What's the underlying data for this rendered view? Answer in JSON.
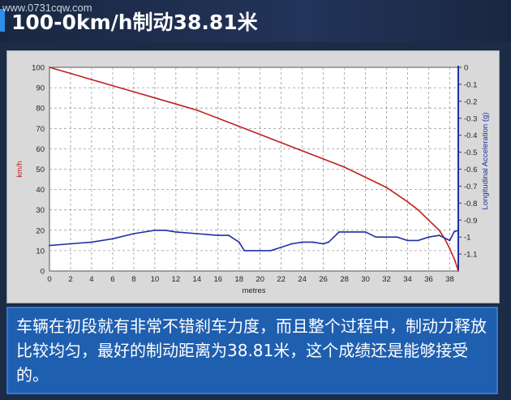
{
  "header": {
    "title": "100-0km/h制动38.81米",
    "watermark": "www.0731cqw.com"
  },
  "caption": {
    "text": "车辆在初段就有非常不错刹车力度，而且整个过程中，制动力释放比较均匀，最好的制动距离为38.81米，这个成绩还是能够接受的。"
  },
  "colors": {
    "speed_line": "#c0201e",
    "accel_line": "#1f2fa8",
    "plot_bg": "#ffffff",
    "grid": "#9a9a9a",
    "caption_bg": "#1f5fb0"
  },
  "chart_data": {
    "type": "line",
    "xlabel": "metres",
    "ylabel_left": "km/h",
    "ylabel_right": "Longitudinal Acceleration (g)",
    "xlim": [
      0,
      38.81
    ],
    "ylim_left": [
      0,
      100
    ],
    "ylim_right": [
      -1.2,
      0
    ],
    "xticks": [
      "0",
      "2",
      "4",
      "6",
      "8",
      "10",
      "12",
      "14",
      "16",
      "18",
      "20",
      "22",
      "24",
      "26",
      "28",
      "30",
      "32",
      "34",
      "36",
      "38"
    ],
    "yticks_left": [
      "0",
      "10",
      "20",
      "30",
      "40",
      "50",
      "60",
      "70",
      "80",
      "90",
      "100"
    ],
    "yticks_right": [
      "0",
      "-0.1",
      "-0.2",
      "-0.3",
      "-0.4",
      "-0.5",
      "-0.6",
      "-0.7",
      "-0.8",
      "-0.9",
      "-1",
      "-1.1"
    ],
    "grid": true,
    "series": [
      {
        "axis": "left",
        "x": [
          0,
          2,
          4,
          6,
          8,
          10,
          12,
          14,
          16,
          18,
          20,
          22,
          24,
          26,
          28,
          30,
          32,
          34,
          35,
          36,
          37,
          37.5,
          38,
          38.5,
          38.81
        ],
        "y": [
          100,
          97,
          94,
          91,
          88,
          85,
          82,
          79,
          75,
          71,
          67,
          63,
          59,
          55,
          51,
          46,
          41,
          34,
          30,
          25,
          20,
          16,
          11,
          5,
          0
        ]
      },
      {
        "axis": "right",
        "x": [
          0,
          2,
          4,
          6,
          8,
          10,
          11,
          12,
          14,
          16,
          17,
          18,
          18.5,
          20,
          21,
          22,
          23,
          24,
          25,
          26,
          26.5,
          27,
          27.5,
          28,
          30,
          31,
          32,
          33,
          34,
          35,
          36,
          37,
          38,
          38.4,
          38.81
        ],
        "y": [
          -1.05,
          -1.04,
          -1.03,
          -1.01,
          -0.98,
          -0.96,
          -0.96,
          -0.97,
          -0.98,
          -0.99,
          -0.99,
          -1.03,
          -1.08,
          -1.08,
          -1.08,
          -1.06,
          -1.04,
          -1.03,
          -1.03,
          -1.04,
          -1.03,
          -1.0,
          -0.97,
          -0.97,
          -0.97,
          -1.0,
          -1.0,
          -1.0,
          -1.02,
          -1.02,
          -1.0,
          -0.99,
          -1.02,
          -0.97,
          -0.96
        ]
      }
    ]
  }
}
